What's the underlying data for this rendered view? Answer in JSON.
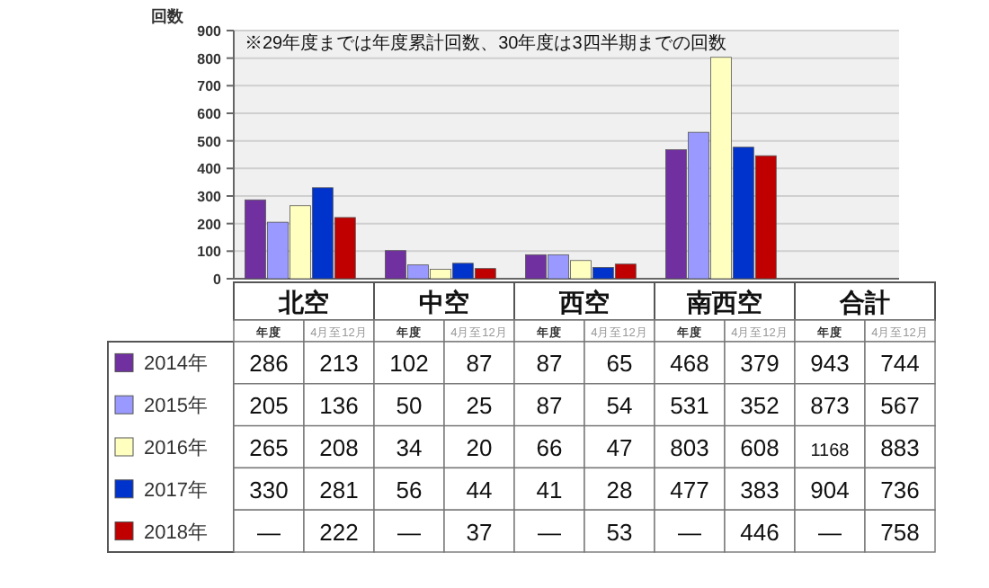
{
  "chart_data": [
    {
      "type": "bar",
      "title": "※29年度までは年度累計回数、30年度は3四半期までの回数",
      "ylabel": "回数",
      "categories": [
        "北空",
        "中空",
        "西空",
        "南西空",
        "合計"
      ],
      "series": [
        {
          "name": "2014年",
          "color": "#7030a0",
          "values": [
            286,
            102,
            87,
            468,
            null
          ]
        },
        {
          "name": "2015年",
          "color": "#9999ff",
          "values": [
            205,
            50,
            87,
            531,
            null
          ]
        },
        {
          "name": "2016年",
          "color": "#ffffc0",
          "values": [
            265,
            34,
            66,
            803,
            null
          ]
        },
        {
          "name": "2017年",
          "color": "#0033cc",
          "values": [
            330,
            56,
            41,
            477,
            null
          ]
        },
        {
          "name": "2018年",
          "color": "#c00000",
          "values": [
            222,
            37,
            53,
            446,
            null
          ]
        }
      ],
      "ylim": [
        0,
        900
      ],
      "yticks": [
        0,
        100,
        200,
        300,
        400,
        500,
        600,
        700,
        800,
        900
      ],
      "grid": "y",
      "legend": "bottom left"
    },
    {
      "type": "other",
      "annotations": [
        "年度",
        "4月至12月",
        "年度",
        "4月至12月",
        "年度",
        "4月至12月",
        "年度",
        "4月至12月",
        "年度",
        "4月至12月",
        "286",
        "213",
        "102",
        "87",
        "87",
        "65",
        "468",
        "379",
        "943",
        "744",
        "205",
        "136",
        "50",
        "25",
        "87",
        "54",
        "531",
        "352",
        "873",
        "567",
        "265",
        "208",
        "34",
        "20",
        "66",
        "47",
        "803",
        "608",
        "1168",
        "883",
        "330",
        "281",
        "56",
        "44",
        "41",
        "28",
        "477",
        "383",
        "904",
        "736",
        "—",
        "222",
        "—",
        "37",
        "—",
        "53",
        "—",
        "446",
        "—",
        "758"
      ]
    }
  ]
}
